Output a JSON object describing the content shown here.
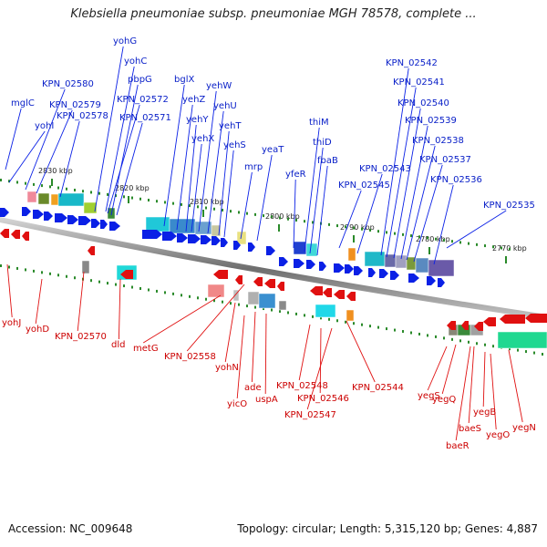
{
  "title": "Klebsiella pneumoniae subsp. pneumoniae MGH 78578, complete ...",
  "footer": {
    "accession": "Accession: NC_009648",
    "summary": "Topology: circular; Length: 5,315,120 bp; Genes: 4,887"
  },
  "colors": {
    "forward": "#0a20e6",
    "reverse": "#e01010",
    "backbone": "#8a8a8a",
    "tick": "#2a8a2a"
  },
  "ticks": [
    "2830 kbp",
    "2820 kbp",
    "2810 kbp",
    "2800 kbp",
    "2790 kbp",
    "2780 kbp",
    "2770 kbp"
  ],
  "forward_labels": [
    "yohG",
    "yohC",
    "pbpG",
    "mglC",
    "KPN_02580",
    "KPN_02579",
    "yohI",
    "KPN_02578",
    "KPN_02572",
    "KPN_02571",
    "bglX",
    "yehW",
    "yehU",
    "yehZ",
    "yehY",
    "yehX",
    "yehT",
    "yehS",
    "yeaT",
    "mrp",
    "yfeR",
    "thiM",
    "thiD",
    "fbaB",
    "KPN_02542",
    "KPN_02541",
    "KPN_02540",
    "KPN_02539",
    "KPN_02538",
    "KPN_02537",
    "KPN_02543",
    "KPN_02545",
    "KPN_02536",
    "KPN_02535"
  ],
  "reverse_labels": [
    "yohJ",
    "yohD",
    "KPN_02570",
    "dld",
    "metG",
    "KPN_02558",
    "yohN",
    "yicO",
    "ade",
    "uspA",
    "KPN_02548",
    "KPN_02546",
    "KPN_02547",
    "KPN_02544",
    "yegS",
    "yegQ",
    "baeS",
    "baeR",
    "yegB",
    "yegO",
    "yegN"
  ]
}
